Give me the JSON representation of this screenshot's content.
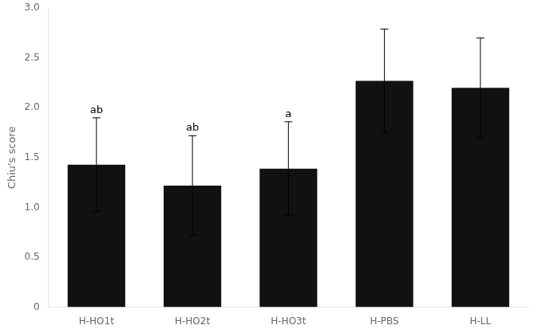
{
  "chart_data": {
    "type": "bar",
    "categories": [
      "H-HO1t",
      "H-HO2t",
      "H-HO3t",
      "H-PBS",
      "H-LL"
    ],
    "values": [
      1.43,
      1.22,
      1.39,
      2.27,
      2.2
    ],
    "errors": [
      0.47,
      0.5,
      0.47,
      0.52,
      0.5
    ],
    "color": "#111111",
    "ylabel": "Chiu's score",
    "ylim": [
      0,
      3.0
    ],
    "yticks": [
      0,
      0.5,
      {
        "value": 1,
        "label": "1.0"
      },
      1.5,
      {
        "value": 2,
        "label": "2.0"
      },
      2.5,
      {
        "value": 3,
        "label": "3.0"
      }
    ],
    "annotations": [
      {
        "category": "H-HO1t",
        "text": "ab"
      },
      {
        "category": "H-HO2t",
        "text": "ab"
      },
      {
        "category": "H-HO3t",
        "text": "a"
      }
    ],
    "grid": false
  }
}
